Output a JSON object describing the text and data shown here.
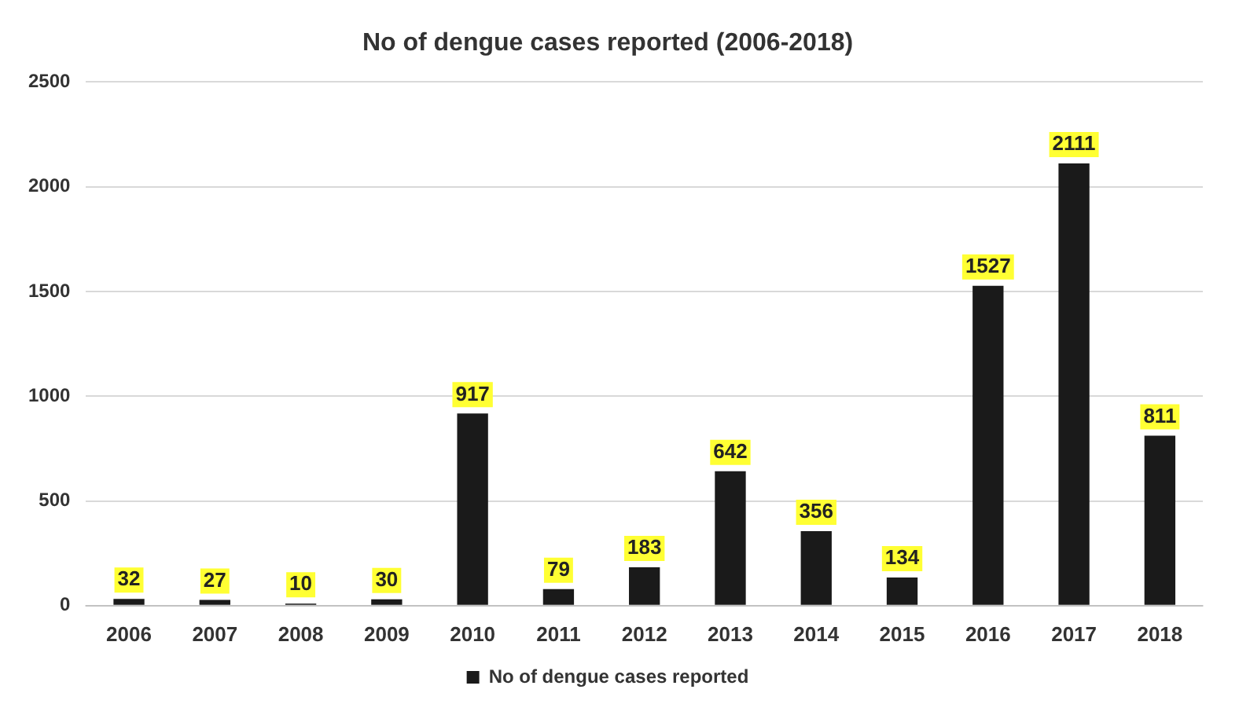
{
  "chart_data": {
    "type": "bar",
    "title": "No of dengue cases reported (2006-2018)",
    "categories": [
      "2006",
      "2007",
      "2008",
      "2009",
      "2010",
      "2011",
      "2012",
      "2013",
      "2014",
      "2015",
      "2016",
      "2017",
      "2018"
    ],
    "series": [
      {
        "name": "No of dengue cases reported",
        "color": "#1a1a1a",
        "values": [
          32,
          27,
          10,
          30,
          917,
          79,
          183,
          642,
          356,
          134,
          1527,
          2111,
          811
        ]
      }
    ],
    "ylim": [
      0,
      2500
    ],
    "yticks": [
      0,
      500,
      1000,
      1500,
      2000,
      2500
    ],
    "grid": "y",
    "legend": "bottom",
    "data_labels": true
  }
}
